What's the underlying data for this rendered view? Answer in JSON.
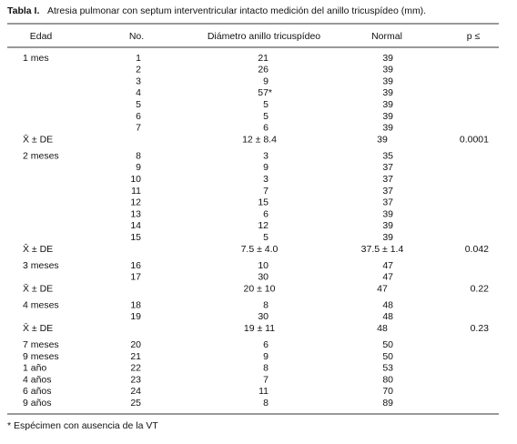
{
  "title": {
    "label": "Tabla I.",
    "text": "Atresia pulmonar con septum interventricular intacto medición del anillo tricuspídeo (mm)."
  },
  "table": {
    "header": [
      "Edad",
      "No.",
      "Diámetro anillo tricuspídeo",
      "Normal",
      "p ≤"
    ],
    "rows": [
      {
        "edad": "1 mes",
        "no": "1",
        "diametro": "21",
        "normal": "39"
      },
      {
        "no": "2",
        "diametro": "26",
        "normal": "39"
      },
      {
        "no": "3",
        "diametro": "9",
        "normal": "39"
      },
      {
        "no": "4",
        "diametro": "57*",
        "normal": "39"
      },
      {
        "no": "5",
        "diametro": "5",
        "normal": "39"
      },
      {
        "no": "6",
        "diametro": "5",
        "normal": "39"
      },
      {
        "no": "7",
        "diametro": "6",
        "normal": "39"
      },
      {
        "edad": "X̄ ± DE",
        "diametro": "12 ±  8.4",
        "normal": "39",
        "p": "0.0001"
      },
      {
        "edad": "2 meses",
        "no": "8",
        "diametro": "3",
        "normal": "35"
      },
      {
        "no": "9",
        "diametro": "9",
        "normal": "37"
      },
      {
        "no": "10",
        "diametro": "3",
        "normal": "37"
      },
      {
        "no": "11",
        "diametro": "7",
        "normal": "37"
      },
      {
        "no": "12",
        "diametro": "15",
        "normal": "37"
      },
      {
        "no": "13",
        "diametro": "6",
        "normal": "39"
      },
      {
        "no": "14",
        "diametro": "12",
        "normal": "39"
      },
      {
        "no": "15",
        "diametro": "5",
        "normal": "39"
      },
      {
        "edad": "X̄ ± DE",
        "diametro": "7.5 ± 4.0",
        "normal": "37.5 ± 1.4",
        "p": "0.042"
      },
      {
        "edad": "3 meses",
        "no": "16",
        "diametro": "10",
        "normal": "47"
      },
      {
        "no": "17",
        "diametro": "30",
        "normal": "47"
      },
      {
        "edad": "X̄ ± DE",
        "diametro": "20 ± 10",
        "normal": "47",
        "p": "0.22"
      },
      {
        "edad": "4 meses",
        "no": "18",
        "diametro": "8",
        "normal": "48"
      },
      {
        "no": "19",
        "diametro": "30",
        "normal": "48"
      },
      {
        "edad": "X̄ ± DE",
        "diametro": "19 ± 11",
        "normal": "48",
        "p": "0.23"
      },
      {
        "edad": "7 meses",
        "no": "20",
        "diametro": "6",
        "normal": "50"
      },
      {
        "edad": "9 meses",
        "no": "21",
        "diametro": "9",
        "normal": "50"
      },
      {
        "edad": "1 año",
        "no": "22",
        "diametro": "8",
        "normal": "53"
      },
      {
        "edad": "4 años",
        "no": "23",
        "diametro": "7",
        "normal": "80"
      },
      {
        "edad": "6 años",
        "no": "24",
        "diametro": "11",
        "normal": "70"
      },
      {
        "edad": "9 años",
        "no": "25",
        "diametro": "8",
        "normal": "89"
      }
    ]
  },
  "footnote": "* Espécimen con ausencia de la VT"
}
